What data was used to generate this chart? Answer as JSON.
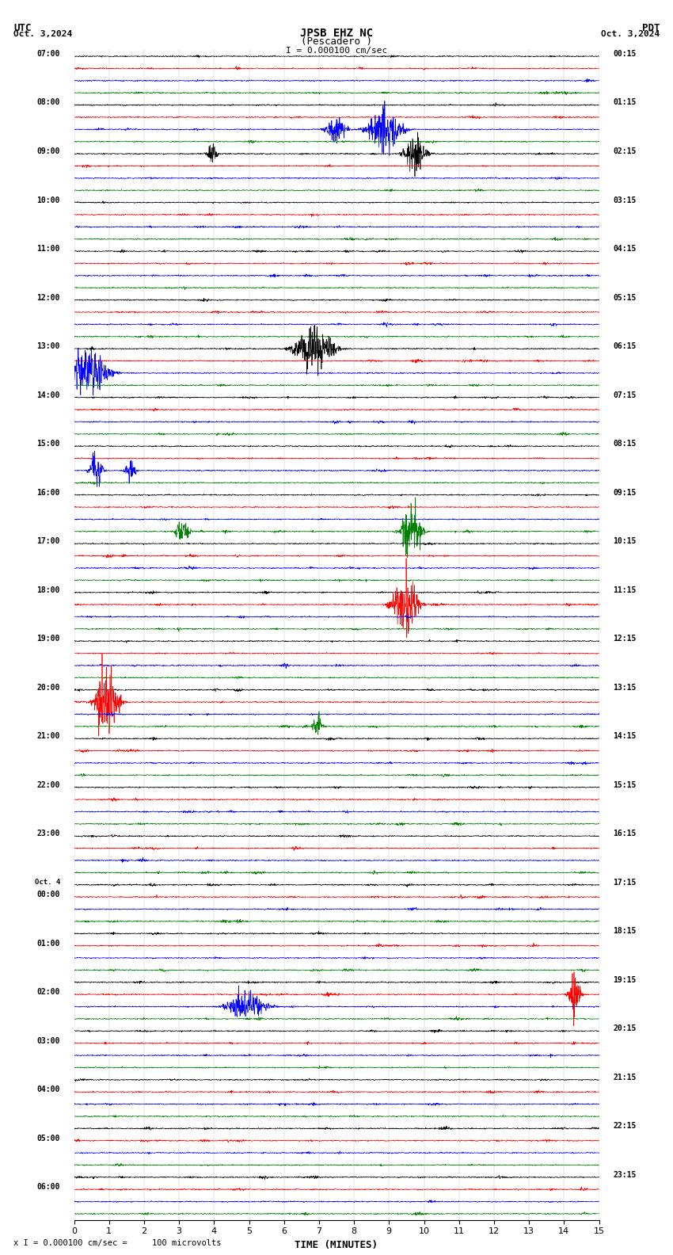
{
  "title_line1": "JPSB EHZ NC",
  "title_line2": "(Pescadero )",
  "utc_label": "UTC",
  "pdt_label": "PDT",
  "date_left": "Oct. 3,2024",
  "date_right": "Oct. 3,2024",
  "scale_label": "I = 0.000100 cm/sec",
  "bottom_label": "x I = 0.000100 cm/sec =     100 microvolts",
  "xlabel": "TIME (MINUTES)",
  "xticks": [
    0,
    1,
    2,
    3,
    4,
    5,
    6,
    7,
    8,
    9,
    10,
    11,
    12,
    13,
    14,
    15
  ],
  "time_minutes": 15,
  "bg_color": "#ffffff",
  "trace_colors": [
    "#000000",
    "#ff0000",
    "#0000ff",
    "#008000"
  ],
  "left_times_utc": [
    "07:00",
    "",
    "",
    "",
    "08:00",
    "",
    "",
    "",
    "09:00",
    "",
    "",
    "",
    "10:00",
    "",
    "",
    "",
    "11:00",
    "",
    "",
    "",
    "12:00",
    "",
    "",
    "",
    "13:00",
    "",
    "",
    "",
    "14:00",
    "",
    "",
    "",
    "15:00",
    "",
    "",
    "",
    "16:00",
    "",
    "",
    "",
    "17:00",
    "",
    "",
    "",
    "18:00",
    "",
    "",
    "",
    "19:00",
    "",
    "",
    "",
    "20:00",
    "",
    "",
    "",
    "21:00",
    "",
    "",
    "",
    "22:00",
    "",
    "",
    "",
    "23:00",
    "",
    "",
    "",
    "Oct. 4",
    "00:00",
    "",
    "",
    "",
    "01:00",
    "",
    "",
    "",
    "02:00",
    "",
    "",
    "",
    "03:00",
    "",
    "",
    "",
    "04:00",
    "",
    "",
    "",
    "05:00",
    "",
    "",
    "",
    "06:00",
    "",
    ""
  ],
  "right_times_pdt": [
    "00:15",
    "",
    "",
    "",
    "01:15",
    "",
    "",
    "",
    "02:15",
    "",
    "",
    "",
    "03:15",
    "",
    "",
    "",
    "04:15",
    "",
    "",
    "",
    "05:15",
    "",
    "",
    "",
    "06:15",
    "",
    "",
    "",
    "07:15",
    "",
    "",
    "",
    "08:15",
    "",
    "",
    "",
    "09:15",
    "",
    "",
    "",
    "10:15",
    "",
    "",
    "",
    "11:15",
    "",
    "",
    "",
    "12:15",
    "",
    "",
    "",
    "13:15",
    "",
    "",
    "",
    "14:15",
    "",
    "",
    "",
    "15:15",
    "",
    "",
    "",
    "16:15",
    "",
    "",
    "",
    "17:15",
    "",
    "",
    "",
    "18:15",
    "",
    "",
    "",
    "19:15",
    "",
    "",
    "",
    "20:15",
    "",
    "",
    "",
    "21:15",
    "",
    "",
    "",
    "22:15",
    "",
    "",
    "",
    "23:15",
    "",
    ""
  ],
  "n_groups": 24,
  "traces_per_group": 4,
  "noise_amplitude": 0.035,
  "seed": 42
}
